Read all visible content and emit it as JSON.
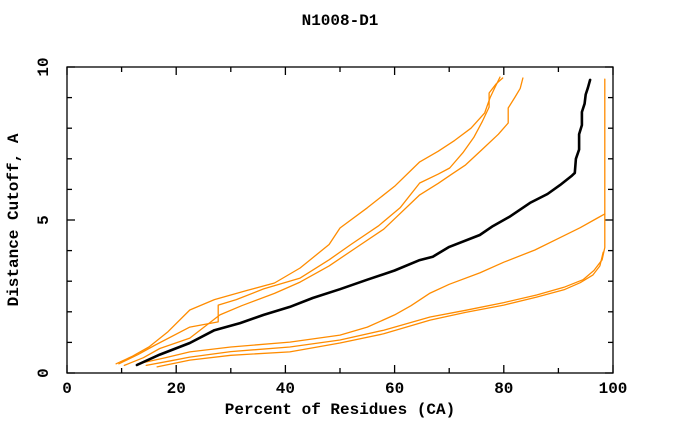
{
  "chart_data": {
    "type": "line",
    "title": "N1008-D1",
    "xlabel": "Percent of Residues (CA)",
    "ylabel": "Distance Cutoff, A",
    "xlim": [
      0,
      100
    ],
    "ylim": [
      0,
      10
    ],
    "x_major_ticks": [
      0,
      20,
      40,
      60,
      80,
      100
    ],
    "x_minor_step": 10,
    "y_major_ticks": [
      0,
      5,
      10
    ],
    "y_minor_step": 1,
    "grid": false,
    "legend": "none",
    "frame_color": "#000000",
    "accent_color": "#ff8c00",
    "series": [
      {
        "name": "series-orange-upper-1",
        "color": "#ff8c00",
        "width": 1.3,
        "points": [
          [
            9,
            0.3
          ],
          [
            12,
            0.55
          ],
          [
            15,
            0.85
          ],
          [
            18.5,
            1.35
          ],
          [
            22.5,
            2.06
          ],
          [
            27,
            2.4
          ],
          [
            33,
            2.7
          ],
          [
            38,
            2.94
          ],
          [
            42.7,
            3.43
          ],
          [
            48,
            4.2
          ],
          [
            50,
            4.74
          ],
          [
            55,
            5.4
          ],
          [
            60,
            6.1
          ],
          [
            64.6,
            6.9
          ],
          [
            68,
            7.25
          ],
          [
            71,
            7.6
          ],
          [
            74,
            8.0
          ],
          [
            76.5,
            8.5
          ],
          [
            77.5,
            9.0
          ],
          [
            78.3,
            9.3
          ],
          [
            79.3,
            9.67
          ]
        ]
      },
      {
        "name": "series-orange-upper-2",
        "color": "#ff8c00",
        "width": 1.3,
        "points": [
          [
            9.5,
            0.3
          ],
          [
            13,
            0.6
          ],
          [
            16,
            0.9
          ],
          [
            22.5,
            1.5
          ],
          [
            27.7,
            1.67
          ],
          [
            27.7,
            2.22
          ],
          [
            31,
            2.4
          ],
          [
            36,
            2.75
          ],
          [
            42.7,
            3.1
          ],
          [
            48,
            3.7
          ],
          [
            52,
            4.2
          ],
          [
            57,
            4.8
          ],
          [
            61,
            5.4
          ],
          [
            64.6,
            6.21
          ],
          [
            68,
            6.5
          ],
          [
            70.1,
            6.7
          ],
          [
            72.5,
            7.2
          ],
          [
            74.5,
            7.7
          ],
          [
            76,
            8.2
          ],
          [
            77.3,
            8.69
          ],
          [
            77.3,
            9.15
          ],
          [
            78.6,
            9.45
          ],
          [
            79.8,
            9.64
          ]
        ]
      },
      {
        "name": "series-orange-upper-3",
        "color": "#ff8c00",
        "width": 1.3,
        "points": [
          [
            10.5,
            0.25
          ],
          [
            14,
            0.5
          ],
          [
            17,
            0.8
          ],
          [
            22.5,
            1.14
          ],
          [
            28,
            1.9
          ],
          [
            32,
            2.2
          ],
          [
            38,
            2.6
          ],
          [
            42.7,
            2.97
          ],
          [
            48,
            3.5
          ],
          [
            53,
            4.1
          ],
          [
            58,
            4.7
          ],
          [
            64.6,
            5.82
          ],
          [
            68,
            6.2
          ],
          [
            70.5,
            6.5
          ],
          [
            73,
            6.8
          ],
          [
            76,
            7.3
          ],
          [
            79,
            7.8
          ],
          [
            80.8,
            8.17
          ],
          [
            80.8,
            8.66
          ],
          [
            82,
            9.0
          ],
          [
            83,
            9.3
          ],
          [
            83.5,
            9.64
          ]
        ]
      },
      {
        "name": "series-orange-lower-1",
        "color": "#ff8c00",
        "width": 1.3,
        "points": [
          [
            13,
            0.3
          ],
          [
            18,
            0.5
          ],
          [
            22.5,
            0.69
          ],
          [
            30,
            0.85
          ],
          [
            40.8,
            1.01
          ],
          [
            50,
            1.24
          ],
          [
            55,
            1.5
          ],
          [
            60,
            1.9
          ],
          [
            63,
            2.2
          ],
          [
            66.5,
            2.61
          ],
          [
            70,
            2.9
          ],
          [
            75.6,
            3.27
          ],
          [
            80,
            3.62
          ],
          [
            85.7,
            4.02
          ],
          [
            90,
            4.4
          ],
          [
            94,
            4.75
          ],
          [
            97,
            5.05
          ],
          [
            98.5,
            5.2
          ],
          [
            98.5,
            9.6
          ]
        ]
      },
      {
        "name": "series-orange-lower-2",
        "color": "#ff8c00",
        "width": 1.3,
        "points": [
          [
            14.5,
            0.25
          ],
          [
            19,
            0.4
          ],
          [
            22.5,
            0.52
          ],
          [
            30,
            0.7
          ],
          [
            40.8,
            0.85
          ],
          [
            50,
            1.08
          ],
          [
            58,
            1.4
          ],
          [
            66.5,
            1.83
          ],
          [
            73,
            2.05
          ],
          [
            80,
            2.3
          ],
          [
            86,
            2.55
          ],
          [
            91,
            2.8
          ],
          [
            94.5,
            3.05
          ],
          [
            96.5,
            3.35
          ],
          [
            98,
            3.7
          ],
          [
            98.5,
            4.1
          ],
          [
            98.5,
            5.2
          ]
        ]
      },
      {
        "name": "series-orange-lower-3",
        "color": "#ff8c00",
        "width": 1.3,
        "points": [
          [
            16.5,
            0.2
          ],
          [
            22.5,
            0.42
          ],
          [
            30,
            0.58
          ],
          [
            40.8,
            0.69
          ],
          [
            50,
            0.98
          ],
          [
            58,
            1.28
          ],
          [
            66.5,
            1.73
          ],
          [
            73,
            1.98
          ],
          [
            80,
            2.22
          ],
          [
            86,
            2.48
          ],
          [
            91,
            2.72
          ],
          [
            94,
            2.95
          ],
          [
            96.3,
            3.2
          ],
          [
            97.6,
            3.5
          ],
          [
            98.2,
            3.95
          ]
        ]
      },
      {
        "name": "series-black-model",
        "color": "#000000",
        "width": 2.6,
        "points": [
          [
            12.8,
            0.26
          ],
          [
            17,
            0.6
          ],
          [
            22.5,
            0.98
          ],
          [
            27,
            1.4
          ],
          [
            31.7,
            1.63
          ],
          [
            36,
            1.9
          ],
          [
            40.8,
            2.16
          ],
          [
            45,
            2.45
          ],
          [
            50,
            2.74
          ],
          [
            55,
            3.05
          ],
          [
            60,
            3.35
          ],
          [
            64.6,
            3.69
          ],
          [
            67,
            3.8
          ],
          [
            70,
            4.12
          ],
          [
            75.6,
            4.51
          ],
          [
            78,
            4.8
          ],
          [
            81,
            5.1
          ],
          [
            84.8,
            5.56
          ],
          [
            88,
            5.85
          ],
          [
            90.3,
            6.14
          ],
          [
            92.5,
            6.45
          ],
          [
            93,
            6.54
          ],
          [
            93.2,
            7.0
          ],
          [
            93.8,
            7.3
          ],
          [
            93.8,
            7.8
          ],
          [
            94.3,
            8.1
          ],
          [
            94.3,
            8.53
          ],
          [
            94.8,
            8.8
          ],
          [
            95,
            9.1
          ],
          [
            95.4,
            9.32
          ],
          [
            95.8,
            9.58
          ]
        ]
      }
    ]
  }
}
